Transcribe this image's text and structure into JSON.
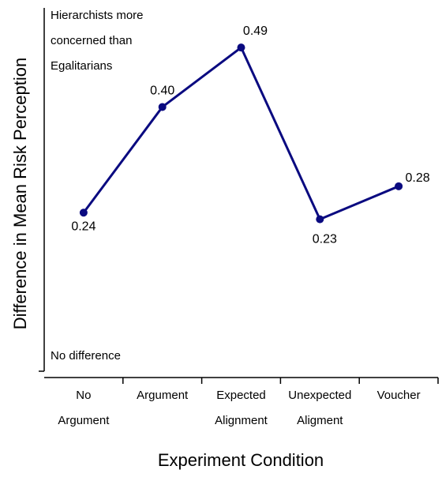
{
  "chart_data": {
    "type": "line",
    "categories": [
      [
        "No",
        "Argument"
      ],
      [
        "Argument"
      ],
      [
        "Expected",
        "Alignment"
      ],
      [
        "Unexpected",
        "Aligment"
      ],
      [
        "Voucher"
      ]
    ],
    "values": [
      0.24,
      0.4,
      0.49,
      0.23,
      0.28
    ],
    "value_labels": [
      "0.24",
      "0.40",
      "0.49",
      "0.23",
      "0.28"
    ],
    "xlabel": "Experiment Condition",
    "ylabel": "Difference in Mean Risk Perception",
    "ylim": [
      0,
      0.55
    ],
    "annotations": {
      "top": [
        "Hierarchists more",
        "concerned than",
        "Egalitarians"
      ],
      "bottom": "No difference"
    },
    "line_color": "#0a0a80",
    "grid": false
  }
}
